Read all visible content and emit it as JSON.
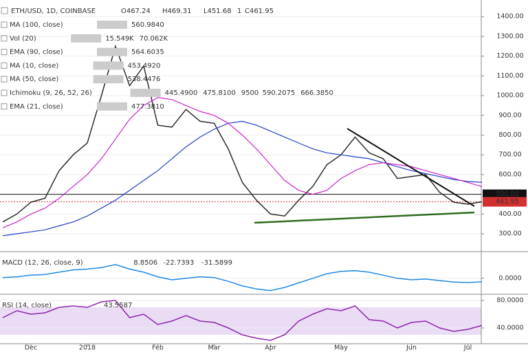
{
  "header": {
    "symbol": "ETH/USD, 1D, COINBASE",
    "ohlc": [
      {
        "label": "O",
        "value": 467.24
      },
      {
        "label": "H",
        "value": 469.31
      },
      {
        "label": "L",
        "value": 451.68
      },
      {
        "label": "C",
        "value": 461.95
      }
    ],
    "badge": "1"
  },
  "indicators": [
    {
      "name": "MA (100, close)",
      "readouts": [
        {
          "text": "560.9840",
          "color": "#1f3fcc"
        }
      ]
    },
    {
      "name": "Vol (20)",
      "readouts": [
        {
          "text": "15.549K",
          "color": "#c62828"
        },
        {
          "text": "70.062K",
          "color": "#1f3fcc"
        }
      ]
    },
    {
      "name": "EMA (90, close)",
      "readouts": [
        {
          "text": "564.6035",
          "color": "#3a6b1f"
        }
      ]
    },
    {
      "name": "MA (10, close)",
      "readouts": [
        {
          "text": "453.4920",
          "color": "#3a6b1f"
        }
      ]
    },
    {
      "name": "MA (50, close)",
      "readouts": [
        {
          "text": "538.4476",
          "color": "#cc22cc"
        }
      ]
    },
    {
      "name": "Ichimoku (9, 26, 52, 26)",
      "readouts": [
        {
          "text": "445.4900",
          "color": "#1f3fcc"
        },
        {
          "text": "475.8100",
          "color": "#8b3a1a"
        },
        {
          "text": "9500",
          "color": "#3a8b1a"
        },
        {
          "text": "590.2075",
          "color": "#3a8b1a"
        },
        {
          "text": "666.3850",
          "color": "#c62828"
        }
      ]
    },
    {
      "name": "EMA (21, close)",
      "readouts": [
        {
          "text": "477.3810",
          "color": "#cc22cc"
        }
      ]
    }
  ],
  "chart_data": [
    {
      "type": "line",
      "categories": [
        null,
        null,
        "Dec",
        null,
        null,
        null,
        "2018",
        null,
        null,
        null,
        null,
        "Feb",
        null,
        null,
        null,
        "Mar",
        null,
        null,
        null,
        "Apr",
        null,
        null,
        null,
        null,
        "May",
        null,
        null,
        null,
        null,
        "Jun",
        null,
        null,
        null,
        "Jul",
        null
      ],
      "ylim": [
        220,
        1460
      ],
      "yticks": [
        {
          "value": 1400,
          "label": "1400.00"
        },
        {
          "value": 1300,
          "label": "1300.00"
        },
        {
          "value": 1200,
          "label": "1200.00"
        },
        {
          "value": 1100,
          "label": "1100.00"
        },
        {
          "value": 1000,
          "label": "1000.00"
        },
        {
          "value": 900,
          "label": "900.00"
        },
        {
          "value": 800,
          "label": "800.00"
        },
        {
          "value": 700,
          "label": "700.00"
        },
        {
          "value": 600,
          "label": "600.00"
        },
        {
          "value": 400,
          "label": "400.00"
        },
        {
          "value": 300,
          "label": "300.00"
        }
      ],
      "level": {
        "value": 500,
        "label": "500.00"
      },
      "last_price": {
        "value": 461.95,
        "label": "461.95"
      },
      "series": [
        {
          "color": "#2b2b2b",
          "values": [
            360,
            400,
            460,
            480,
            620,
            700,
            760,
            1000,
            1250,
            1050,
            1150,
            850,
            840,
            930,
            870,
            860,
            730,
            560,
            470,
            400,
            390,
            470,
            540,
            650,
            700,
            790,
            710,
            680,
            580,
            590,
            600,
            510,
            460,
            450,
            461.95
          ]
        },
        {
          "color": "#1f3fcc",
          "values": [
            290,
            300,
            310,
            320,
            340,
            360,
            390,
            430,
            470,
            520,
            570,
            620,
            680,
            740,
            790,
            830,
            860,
            870,
            850,
            820,
            790,
            760,
            730,
            710,
            700,
            690,
            680,
            660,
            640,
            620,
            605,
            590,
            575,
            565,
            560.98
          ]
        },
        {
          "color": "#cc22cc",
          "values": [
            330,
            360,
            400,
            430,
            480,
            540,
            600,
            680,
            780,
            880,
            950,
            990,
            980,
            950,
            920,
            900,
            860,
            800,
            730,
            650,
            570,
            520,
            500,
            520,
            580,
            620,
            650,
            660,
            650,
            640,
            620,
            600,
            580,
            560,
            538.45
          ]
        }
      ]
    },
    {
      "type": "line",
      "title": "MACD (12, 26, close, 9)",
      "readouts": [
        {
          "text": "8.8506",
          "color": "#1b5e20"
        },
        {
          "text": "-22.7393",
          "color": "#1f3fcc"
        },
        {
          "text": "-31.5899",
          "color": "#e65100"
        }
      ],
      "ylim": [
        -100,
        170
      ],
      "yticks": [
        {
          "value": 0,
          "label": "0.0000"
        }
      ],
      "series": [
        {
          "color": "#1e88e5",
          "values": [
            5,
            10,
            20,
            25,
            40,
            55,
            60,
            70,
            90,
            60,
            40,
            10,
            -10,
            0,
            10,
            5,
            -20,
            -50,
            -70,
            -80,
            -60,
            -30,
            0,
            30,
            45,
            50,
            40,
            20,
            0,
            -10,
            -5,
            -15,
            -25,
            -28,
            -22.74
          ]
        }
      ]
    },
    {
      "type": "line",
      "title": "RSI (14, close)",
      "readouts": [
        {
          "text": "43.5587",
          "color": "#8e24aa"
        }
      ],
      "ylim": [
        17,
        88
      ],
      "band": [
        30,
        70
      ],
      "yticks": [
        {
          "value": 80,
          "label": "80.0000"
        },
        {
          "value": 40,
          "label": "40.0000"
        }
      ],
      "series": [
        {
          "color": "#8e24aa",
          "values": [
            55,
            65,
            60,
            62,
            70,
            72,
            70,
            78,
            80,
            55,
            60,
            45,
            50,
            58,
            50,
            48,
            40,
            30,
            25,
            22,
            30,
            50,
            60,
            68,
            65,
            72,
            52,
            50,
            40,
            48,
            50,
            40,
            35,
            38,
            43.56
          ]
        }
      ]
    }
  ]
}
